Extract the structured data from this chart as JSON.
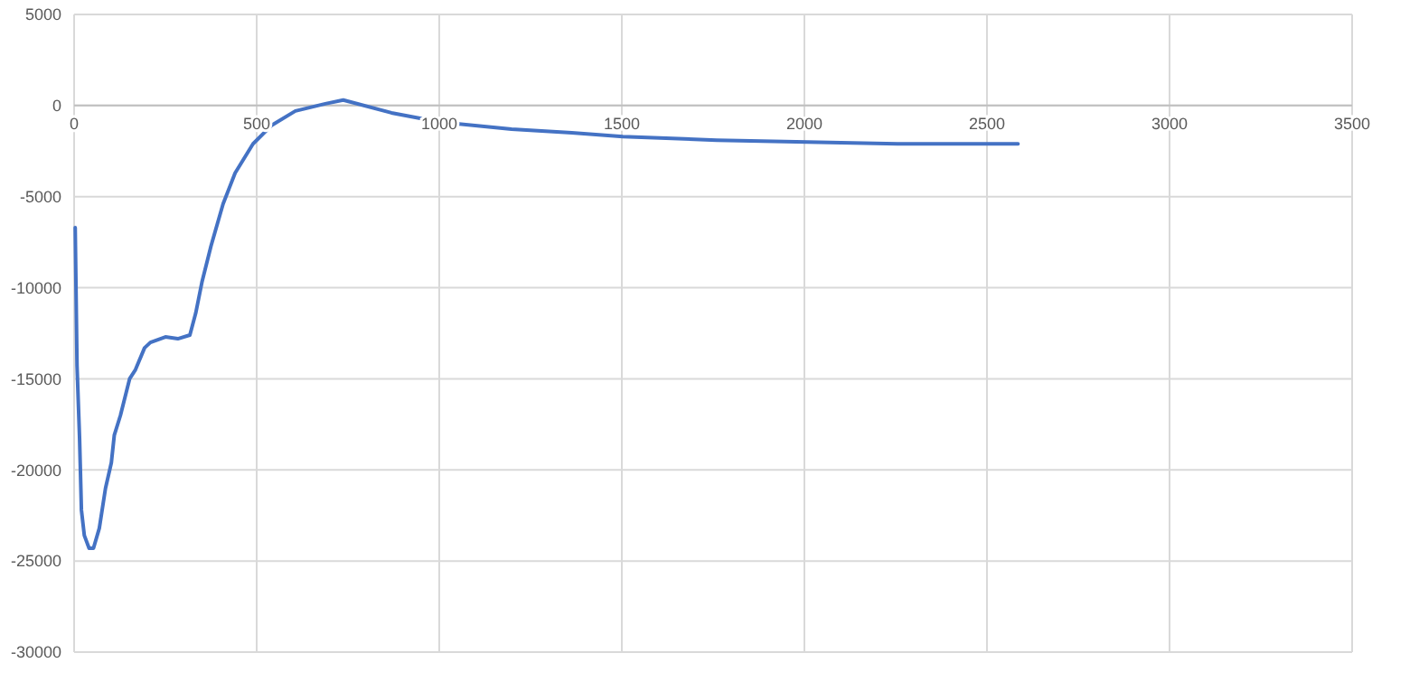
{
  "chart_data": {
    "type": "line",
    "x": [
      3,
      8,
      15,
      20,
      28,
      41,
      53,
      69,
      86,
      102,
      110,
      127,
      152,
      168,
      193,
      209,
      250,
      284,
      317,
      333,
      350,
      375,
      408,
      441,
      490,
      540,
      606,
      688,
      737,
      869,
      1000,
      1198,
      1363,
      1503,
      1760,
      2008,
      2255,
      2585
    ],
    "series": [
      {
        "color": "#4472c4",
        "values": [
          -6700,
          -14300,
          -18300,
          -22200,
          -23600,
          -24300,
          -24300,
          -23200,
          -21000,
          -19600,
          -18100,
          -17000,
          -15000,
          -14500,
          -13300,
          -13000,
          -12700,
          -12800,
          -12600,
          -11400,
          -9700,
          -7700,
          -5400,
          -3700,
          -2100,
          -1100,
          -300,
          100,
          300,
          -400,
          -900,
          -1300,
          -1500,
          -1700,
          -1900,
          -2000,
          -2100,
          -2100
        ]
      }
    ],
    "xlim": [
      0,
      3500
    ],
    "xticks": [
      0,
      500,
      1000,
      1500,
      2000,
      2500,
      3000,
      3500
    ],
    "ylim": [
      -30000,
      5000
    ],
    "yticks": [
      -30000,
      -25000,
      -20000,
      -15000,
      -10000,
      -5000,
      0,
      5000
    ],
    "grid": true,
    "marker": "none",
    "line_style": "solid"
  }
}
